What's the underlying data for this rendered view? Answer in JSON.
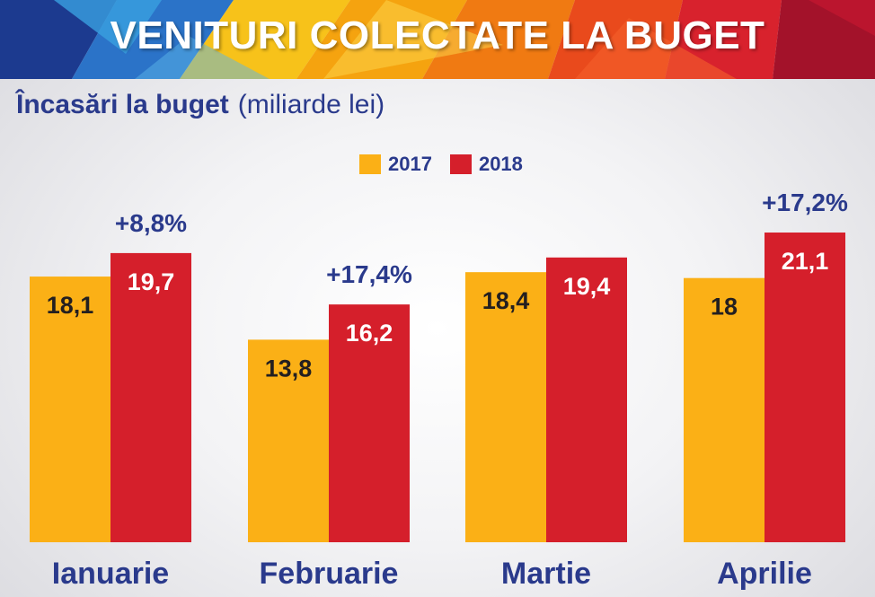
{
  "banner": {
    "title": "VENITURI COLECTATE LA BUGET"
  },
  "subtitle": {
    "main": "Încasări la buget",
    "unit": "(miliarde lei)"
  },
  "colors": {
    "y2017": "#fbb016",
    "y2018": "#d51f2b",
    "text_dark": "#231f20",
    "text_blue": "#2a3a8c",
    "text_light": "#ffffff"
  },
  "chart_data": {
    "type": "bar",
    "categories": [
      "Ianuarie",
      "Februarie",
      "Martie",
      "Aprilie"
    ],
    "series": [
      {
        "name": "2017",
        "values": [
          18.1,
          13.8,
          18.4,
          18
        ],
        "labels": [
          "18,1",
          "13,8",
          "18,4",
          "18"
        ]
      },
      {
        "name": "2018",
        "values": [
          19.7,
          16.2,
          19.4,
          21.1
        ],
        "labels": [
          "19,7",
          "16,2",
          "19,4",
          "21,1"
        ]
      }
    ],
    "growth_labels": [
      "+8,8%",
      "+17,4%",
      "",
      "+17,2%"
    ],
    "legend_position": "top-center",
    "grid": false
  }
}
